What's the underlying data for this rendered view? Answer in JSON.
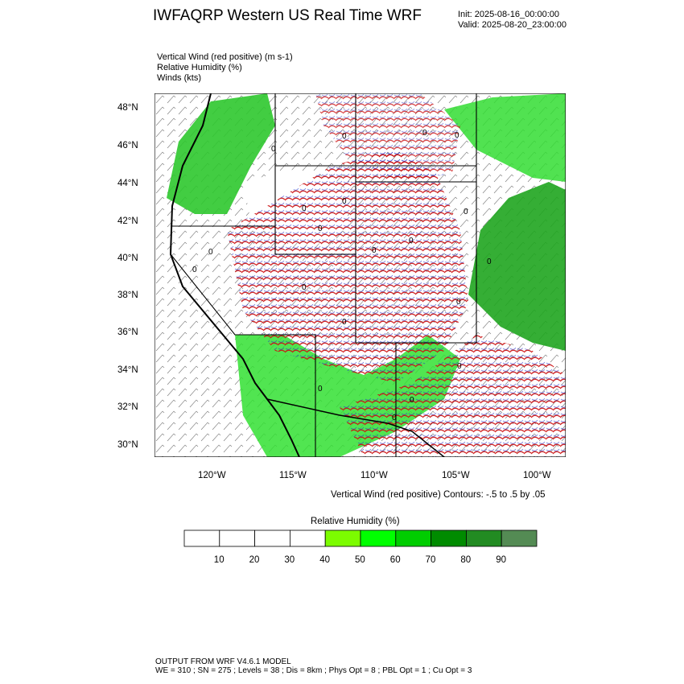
{
  "header": {
    "title": "IWFAQRP Western US Real Time WRF",
    "init": "Init: 2025-08-16_00:00:00",
    "valid": "Valid: 2025-08-20_23:00:00"
  },
  "fields": [
    "Vertical Wind (red positive)   (m s-1)",
    "Relative Humidity   (%)",
    "Winds   (kts)"
  ],
  "map": {
    "lat_ticks": [
      "48°N",
      "46°N",
      "44°N",
      "42°N",
      "40°N",
      "38°N",
      "36°N",
      "34°N",
      "32°N",
      "30°N"
    ],
    "lon_ticks": [
      "120°W",
      "115°W",
      "110°W",
      "105°W",
      "100°W"
    ],
    "contour_labels": [
      "0",
      "0",
      "0",
      "0",
      "0",
      "0",
      "0",
      "0",
      "0",
      "0",
      "0",
      "0",
      "0",
      "0",
      "0",
      "0",
      "0",
      "0",
      "0",
      "0"
    ],
    "contours_note": "Vertical Wind (red positive) Contours: -.5 to .5 by .05"
  },
  "colorbar": {
    "title": "Relative Humidity   (%)",
    "labels": [
      "10",
      "20",
      "30",
      "40",
      "50",
      "60",
      "70",
      "80",
      "90"
    ],
    "colors": [
      "#ffffff",
      "#ffffff",
      "#ffffff",
      "#ffffff",
      "#7cfc00",
      "#00ff00",
      "#00cd00",
      "#008b00",
      "#228b22",
      "#548b54"
    ]
  },
  "footer": {
    "line1": "OUTPUT FROM WRF V4.6.1 MODEL",
    "line2": "WE = 310 ; SN = 275 ; Levels = 38 ; Dis = 8km ; Phys Opt = 8 ; PBL Opt = 1 ; Cu Opt = 3"
  }
}
